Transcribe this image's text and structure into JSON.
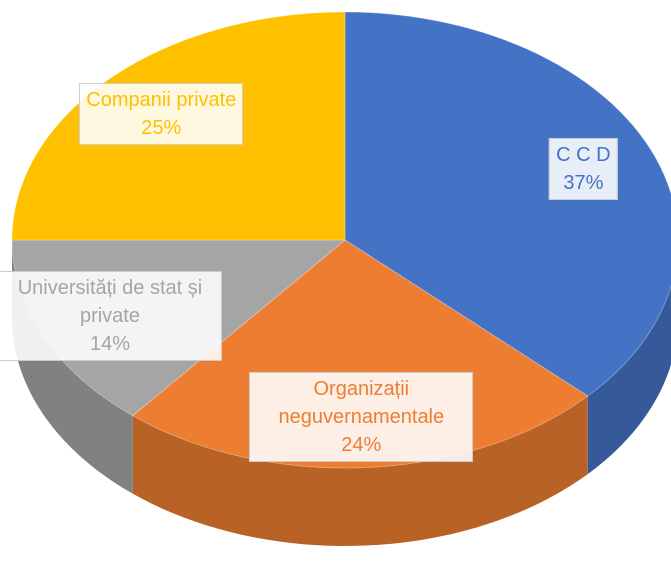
{
  "chart_data": {
    "type": "pie",
    "categories": [
      "C C D",
      "Organizații neguvernamentale",
      "Universități de stat și private",
      "Companii private"
    ],
    "values": [
      37,
      24,
      14,
      25
    ],
    "value_labels": [
      "37%",
      "24%",
      "14%",
      "25%"
    ],
    "colors": [
      "#4472c4",
      "#ed7d31",
      "#a5a5a5",
      "#ffc000"
    ]
  }
}
